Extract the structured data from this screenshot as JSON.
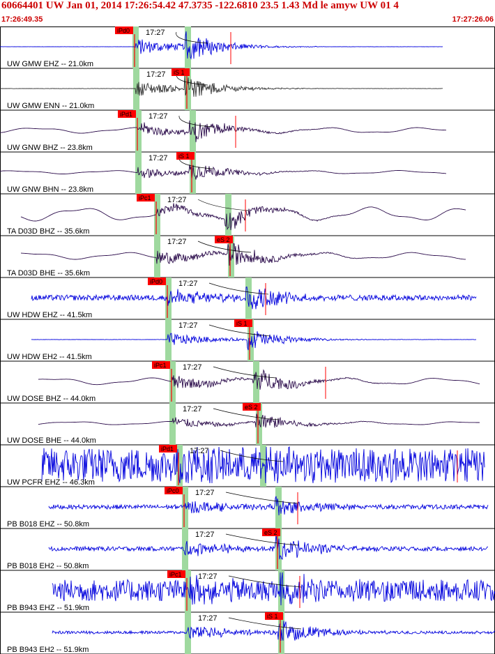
{
  "header": {
    "title": "60664401 UW Jan 01, 2014 17:26:54.42   47.3735 -122.6810 23.5 1.43 Md le amyw UW 01   4",
    "start_time": "17:26:49.35",
    "end_time": "17:27:26.06"
  },
  "minute_label": "17:27",
  "colors": {
    "blue": "#0000dd",
    "gray": "#333333",
    "purple": "#2a0a4a",
    "pick": "#ff0000",
    "window": "#9fd99f"
  },
  "traces": [
    {
      "label": "UW GMW EHZ -- 21.0km",
      "pick": "iPd0",
      "pick_type": "P",
      "color": "blue",
      "pick_x": 193,
      "s_x": 268,
      "start_x": 0,
      "end_x": 635,
      "amp": 0.02,
      "sig": 0.9,
      "noise_kind": "flat",
      "mark_x": 331
    },
    {
      "label": "UW GMW ENN -- 21.0km",
      "pick": "iS 1",
      "pick_type": "S",
      "color": "gray",
      "pick_x": 194,
      "s_x": 268,
      "start_x": 0,
      "end_x": 635,
      "amp": 0.03,
      "sig": 0.8,
      "noise_kind": "flat"
    },
    {
      "label": "UW GNW BHZ -- 23.8km",
      "pick": "iPd1",
      "pick_type": "P",
      "color": "purple",
      "pick_x": 197,
      "s_x": 275,
      "start_x": 0,
      "end_x": 640,
      "amp": 0.25,
      "sig": 0.7,
      "noise_kind": "wave",
      "mark_x": 338
    },
    {
      "label": "UW GNW BHN -- 23.8km",
      "pick": "iS 1",
      "pick_type": "S",
      "color": "purple",
      "pick_x": 197,
      "s_x": 275,
      "start_x": 0,
      "end_x": 640,
      "amp": 0.15,
      "sig": 0.6,
      "noise_kind": "wave"
    },
    {
      "label": "TA D03D BHZ -- 35.6km",
      "pick": "iPc1",
      "pick_type": "P",
      "color": "purple",
      "pick_x": 224,
      "s_x": 326,
      "start_x": 30,
      "end_x": 668,
      "amp": 0.6,
      "sig": 0.6,
      "noise_kind": "wave",
      "mark_x": 352
    },
    {
      "label": "TA D03D BHE -- 35.6km",
      "pick": "eS 2",
      "pick_type": "S",
      "color": "purple",
      "pick_x": 224,
      "s_x": 330,
      "start_x": 30,
      "end_x": 668,
      "amp": 0.3,
      "sig": 0.8,
      "noise_kind": "wave"
    },
    {
      "label": "UW HDW EHZ -- 41.5km",
      "pick": "iPd0",
      "pick_type": "P",
      "color": "blue",
      "pick_x": 240,
      "s_x": 355,
      "start_x": 45,
      "end_x": 683,
      "amp": 0.15,
      "sig": 0.9,
      "noise_kind": "noise",
      "mark_x": 381
    },
    {
      "label": "UW HDW EH2 -- 41.5km",
      "pick": "iS 1",
      "pick_type": "S",
      "color": "blue",
      "pick_x": 240,
      "s_x": 358,
      "start_x": 45,
      "end_x": 683,
      "amp": 0.03,
      "sig": 0.7,
      "noise_kind": "flat"
    },
    {
      "label": "UW DOSE BHZ -- 44.0km",
      "pick": "iPc1",
      "pick_type": "P",
      "color": "purple",
      "pick_x": 246,
      "s_x": 366,
      "start_x": 55,
      "end_x": 688,
      "amp": 0.3,
      "sig": 0.8,
      "noise_kind": "wave",
      "mark_x": 467
    },
    {
      "label": "UW DOSE BHE -- 44.0km",
      "pick": "eS 2",
      "pick_type": "S",
      "color": "purple",
      "pick_x": 246,
      "s_x": 370,
      "start_x": 55,
      "end_x": 688,
      "amp": 0.15,
      "sig": 0.6,
      "noise_kind": "wave"
    },
    {
      "label": "UW PCFR EHZ -- 46.3km",
      "pick": "iPd1",
      "pick_type": "P",
      "color": "blue",
      "pick_x": 256,
      "s_x": 376,
      "start_x": 60,
      "end_x": 695,
      "amp": 0.95,
      "sig": 0.9,
      "noise_kind": "noise",
      "mark_x": 656
    },
    {
      "label": "PB B018 EHZ -- 50.8km",
      "pick": "iPc0",
      "pick_type": "P",
      "color": "blue",
      "pick_x": 264,
      "s_x": 398,
      "start_x": 70,
      "end_x": 700,
      "amp": 0.12,
      "sig": 0.7,
      "noise_kind": "noise",
      "mark_x": 427
    },
    {
      "label": "PB B018 EH2 -- 50.8km",
      "pick": "eS 2",
      "pick_type": "S",
      "color": "blue",
      "pick_x": 264,
      "s_x": 398,
      "start_x": 70,
      "end_x": 700,
      "amp": 0.12,
      "sig": 0.8,
      "noise_kind": "noise"
    },
    {
      "label": "PB B943 EHZ -- 51.9km",
      "pick": "iPc1",
      "pick_type": "P",
      "color": "blue",
      "pick_x": 268,
      "s_x": 402,
      "start_x": 75,
      "end_x": 710,
      "amp": 0.6,
      "sig": 0.8,
      "noise_kind": "noise",
      "mark_x": 430
    },
    {
      "label": "PB B943 EH2 -- 51.9km",
      "pick": "iS 1",
      "pick_type": "S",
      "color": "blue",
      "pick_x": 268,
      "s_x": 402,
      "start_x": 75,
      "end_x": 710,
      "amp": 0.08,
      "sig": 0.8,
      "noise_kind": "noise"
    }
  ]
}
